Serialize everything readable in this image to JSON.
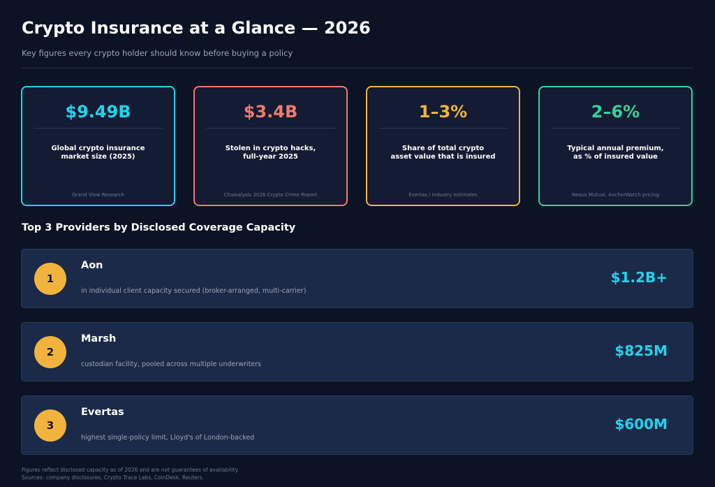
{
  "header": {
    "title": "Crypto Insurance at a Glance — 2026",
    "subtitle": "Key figures every crypto holder should know before buying a policy"
  },
  "stats": [
    {
      "value": "$9.49B",
      "label": "Global crypto insurance\nmarket size (2025)",
      "source": "Grand View Research",
      "color": "#22d3ee"
    },
    {
      "value": "$3.4B",
      "label": "Stolen in crypto hacks,\nfull-year 2025",
      "source": "Chainalysis 2026 Crypto Crime Report",
      "color": "#f07a6a"
    },
    {
      "value": "1–3%",
      "label": "Share of total crypto\nasset value that is insured",
      "source": "Evertas / industry estimates",
      "color": "#f2b33d"
    },
    {
      "value": "2–6%",
      "label": "Typical annual premium,\nas % of insured value",
      "source": "Nexus Mutual, AnchorWatch pricing",
      "color": "#34d399"
    }
  ],
  "providers_section": {
    "heading": "Top 3 Providers by Disclosed Coverage Capacity",
    "providers": [
      {
        "rank": "1",
        "name": "Aon",
        "description": "in individual client capacity secured (broker-arranged, multi-carrier)",
        "amount": "$1.2B+"
      },
      {
        "rank": "2",
        "name": "Marsh",
        "description": "custodian facility, pooled across multiple underwriters",
        "amount": "$825M"
      },
      {
        "rank": "3",
        "name": "Evertas",
        "description": "highest single-policy limit, Lloyd's of London-backed",
        "amount": "$600M"
      }
    ]
  },
  "footer": {
    "line1": "Figures reflect disclosed capacity as of 2026 and are not guarantees of availability.",
    "line2": "Sources: company disclosures, Crypto Trace Labs, CoinDesk, Reuters."
  },
  "theme": {
    "background": "#0b1324",
    "card_background": "#131c33",
    "provider_background": "#1b2a48",
    "badge_color": "#f2b33d",
    "amount_color": "#22d3ee"
  }
}
